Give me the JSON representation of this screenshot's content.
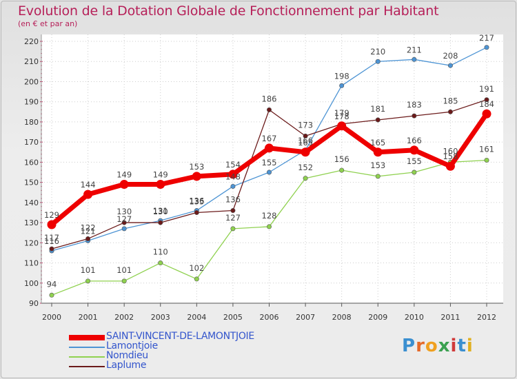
{
  "title": "Evolution de la Dotation Globale de Fonctionnement par Habitant",
  "subtitle": "(en € et par an)",
  "logo_text": [
    "P",
    "r",
    "o",
    "x",
    "i",
    "t",
    "i"
  ],
  "chart_data": {
    "type": "line",
    "title": "Evolution de la Dotation Globale de Fonctionnement par Habitant",
    "subtitle": "(en € et par an)",
    "xlabel": "",
    "ylabel": "",
    "ylim": [
      90,
      220
    ],
    "yticks": [
      90,
      100,
      110,
      120,
      130,
      140,
      150,
      160,
      170,
      180,
      190,
      200,
      210,
      220
    ],
    "grid": true,
    "legend_position": "bottom-left",
    "categories": [
      "2000",
      "2001",
      "2002",
      "2003",
      "2004",
      "2005",
      "2006",
      "2007",
      "2008",
      "2009",
      "2010",
      "2011",
      "2012"
    ],
    "series": [
      {
        "name": "SAINT-VINCENT-DE-LAMONTJOIE",
        "color": "#ee0000",
        "values": [
          129,
          144,
          149,
          149,
          153,
          154,
          167,
          165,
          178,
          165,
          166,
          158,
          184
        ]
      },
      {
        "name": "Lamontjoie",
        "color": "#4d94d4",
        "values": [
          116,
          121,
          127,
          131,
          136,
          148,
          155,
          166,
          198,
          210,
          211,
          208,
          217
        ]
      },
      {
        "name": "Nomdieu",
        "color": "#8fd14f",
        "values": [
          94,
          101,
          101,
          110,
          102,
          127,
          128,
          152,
          156,
          153,
          155,
          160,
          161
        ]
      },
      {
        "name": "Laplume",
        "color": "#6b1a1a",
        "values": [
          117,
          122,
          130,
          130,
          135,
          136,
          186,
          173,
          179,
          181,
          183,
          185,
          191
        ]
      }
    ]
  }
}
